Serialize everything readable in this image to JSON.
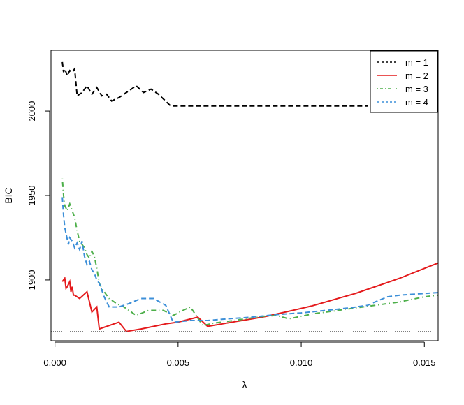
{
  "chart_data": {
    "type": "line",
    "title": "",
    "xlabel": "λ",
    "ylabel": "BIC",
    "xlim": [
      -0.00016,
      0.01556
    ],
    "ylim": [
      1864,
      2036
    ],
    "xticks": [
      0.0,
      0.005,
      0.01,
      0.015
    ],
    "xtick_labels": [
      "0.000",
      "0.005",
      "0.010",
      "0.015"
    ],
    "yticks": [
      1900,
      1950,
      2000
    ],
    "ytick_labels": [
      "1900",
      "1950",
      "2000"
    ],
    "grid": false,
    "legend_position": "top-right",
    "reference_line": {
      "y": 1869.5,
      "style": "dotted",
      "color": "#555555"
    },
    "series": [
      {
        "name": "m = 1",
        "color": "#000000",
        "dash": "dashed",
        "x": [
          0.0003,
          0.00035,
          0.0004,
          0.0005,
          0.0006,
          0.0007,
          0.0008,
          0.0009,
          0.0011,
          0.0013,
          0.0015,
          0.0017,
          0.0019,
          0.0021,
          0.0023,
          0.0026,
          0.0029,
          0.0033,
          0.0036,
          0.0039,
          0.0042,
          0.0047,
          0.006,
          0.008,
          0.01,
          0.012,
          0.0127
        ],
        "y": [
          2029,
          2023,
          2025,
          2021,
          2024,
          2023,
          2025,
          2009,
          2011,
          2015,
          2010,
          2014,
          2009,
          2010,
          2006,
          2008,
          2011,
          2015,
          2011,
          2013,
          2010,
          2003,
          2003,
          2003,
          2003,
          2003,
          2003
        ]
      },
      {
        "name": "m = 2",
        "color": "#e41a1c",
        "dash": "solid",
        "x": [
          0.0003,
          0.0004,
          0.00045,
          0.0005,
          0.0006,
          0.00065,
          0.0007,
          0.00075,
          0.0008,
          0.001,
          0.0013,
          0.0015,
          0.0017,
          0.0018,
          0.0024,
          0.0026,
          0.0029,
          0.0035,
          0.0045,
          0.005,
          0.0058,
          0.0062,
          0.0068,
          0.0074,
          0.008,
          0.0086,
          0.0092,
          0.0098,
          0.0104,
          0.011,
          0.0116,
          0.0122,
          0.0128,
          0.0134,
          0.014,
          0.0146,
          0.0152,
          0.01556
        ],
        "y": [
          1899,
          1901,
          1895,
          1896,
          1899,
          1893,
          1896,
          1891,
          1891,
          1889,
          1893,
          1881,
          1884,
          1871,
          1874,
          1875,
          1869.5,
          1871,
          1874,
          1875,
          1878,
          1872.5,
          1874,
          1875.5,
          1877,
          1878.5,
          1880.5,
          1882.5,
          1884.5,
          1887,
          1889.5,
          1892,
          1895,
          1898,
          1901,
          1904.5,
          1908,
          1910
        ]
      },
      {
        "name": "m = 3",
        "color": "#4daf4a",
        "dash": "dotdash",
        "x": [
          0.0003,
          0.00035,
          0.0004,
          0.0005,
          0.0006,
          0.0007,
          0.0008,
          0.0009,
          0.001,
          0.0011,
          0.0012,
          0.0013,
          0.0014,
          0.0015,
          0.0016,
          0.0017,
          0.0018,
          0.002,
          0.0022,
          0.0025,
          0.0028,
          0.0033,
          0.0038,
          0.0044,
          0.0048,
          0.0052,
          0.0055,
          0.006,
          0.0065,
          0.007,
          0.0075,
          0.008,
          0.0085,
          0.009,
          0.0095,
          0.01,
          0.0105,
          0.011,
          0.0115,
          0.012,
          0.0125,
          0.013,
          0.0135,
          0.014,
          0.0145,
          0.015,
          0.01556
        ],
        "y": [
          1960,
          1950,
          1944,
          1941,
          1945,
          1941,
          1937,
          1929,
          1923,
          1921,
          1919,
          1915,
          1913,
          1917,
          1914,
          1907,
          1898,
          1893,
          1889,
          1886,
          1884,
          1879,
          1882,
          1882,
          1879,
          1882,
          1884,
          1873,
          1874.5,
          1875.5,
          1876.5,
          1877.5,
          1878.5,
          1879,
          1877,
          1878.5,
          1880,
          1881,
          1882,
          1883,
          1884,
          1885,
          1886,
          1887,
          1888.5,
          1890,
          1891
        ]
      },
      {
        "name": "m = 4",
        "color": "#3c8fd8",
        "dash": "dashed",
        "x": [
          0.0003,
          0.00035,
          0.0004,
          0.0005,
          0.00055,
          0.0006,
          0.0007,
          0.0008,
          0.0009,
          0.001,
          0.0011,
          0.0012,
          0.0013,
          0.0014,
          0.0015,
          0.0016,
          0.0017,
          0.0018,
          0.002,
          0.0022,
          0.0026,
          0.003,
          0.0035,
          0.004,
          0.0045,
          0.0048,
          0.0055,
          0.0062,
          0.007,
          0.008,
          0.009,
          0.01,
          0.011,
          0.012,
          0.0127,
          0.013,
          0.0135,
          0.014,
          0.0145,
          0.015,
          0.01556
        ],
        "y": [
          1949,
          1938,
          1931,
          1924,
          1921,
          1925,
          1923,
          1919,
          1922,
          1918,
          1923,
          1914,
          1909,
          1911,
          1906,
          1904,
          1900,
          1898,
          1890,
          1884,
          1884,
          1886,
          1889,
          1889,
          1885,
          1875,
          1876,
          1876,
          1877,
          1878,
          1879.5,
          1880.5,
          1882,
          1883.5,
          1885,
          1887,
          1890,
          1891,
          1891.5,
          1892,
          1892.5
        ]
      }
    ]
  }
}
